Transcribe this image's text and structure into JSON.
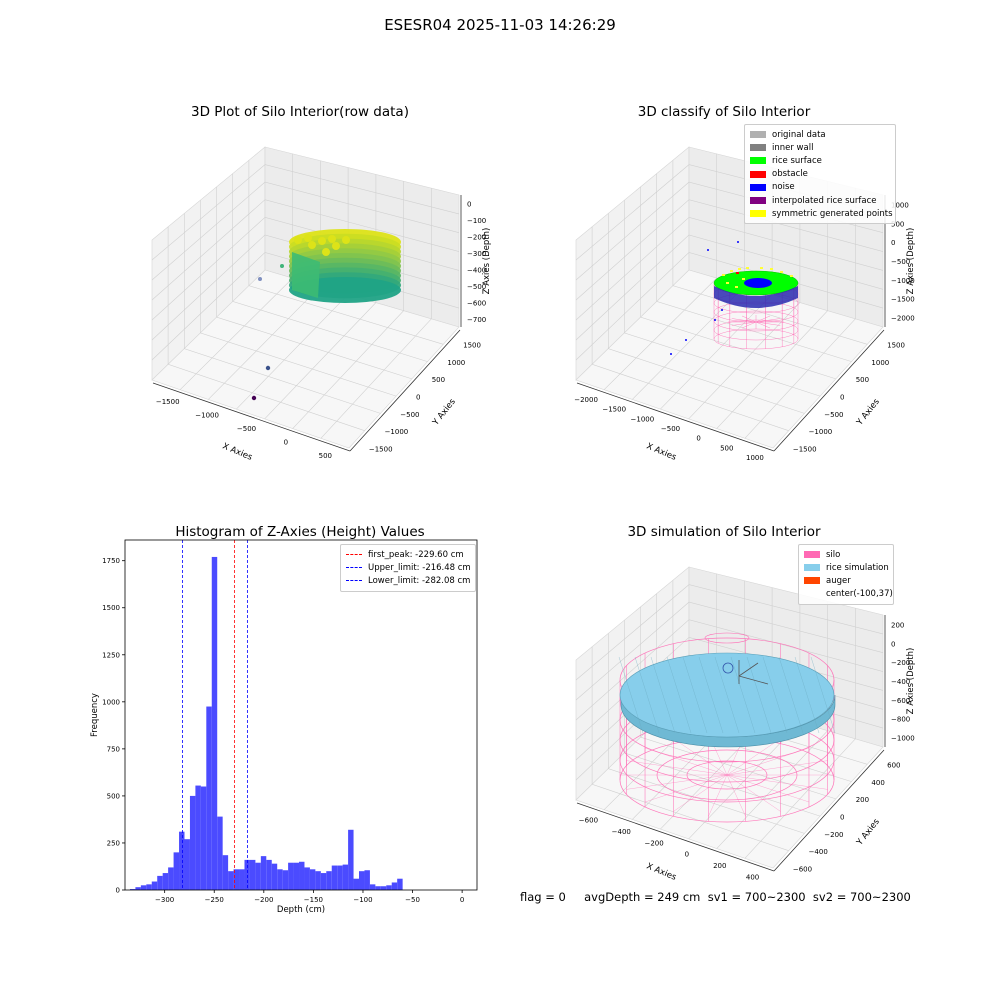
{
  "suptitle": "ESESR04 2025-11-03 14:26:29",
  "footer": "flag = 0     avgDepth = 249 cm  sv1 = 700~2300  sv2 = 700~2300",
  "colors": {
    "hist_bar": "#4b4bff",
    "first_peak": "#ff0000",
    "limit": "#0000ff",
    "silo": "#ff69b4",
    "rice": "#87ceeb",
    "auger": "#ff4500",
    "noise": "#0000ff",
    "rice_surface": "#00ff00",
    "viridis_low": "#20a386",
    "viridis_high": "#dde318"
  },
  "chart_data": [
    {
      "type": "scatter",
      "projection": "3d",
      "title": "3D Plot of Silo Interior(row data)",
      "xlabel": "X Axies",
      "ylabel": "Y Axies",
      "zlabel": "Z Axies (Depth)",
      "xticks": [
        "−1500",
        "−1000",
        "−500",
        "0",
        "500"
      ],
      "yticks": [
        "1500",
        "1000",
        "500",
        "0",
        "−500",
        "−1000",
        "−1500"
      ],
      "zticks": [
        "0",
        "−100",
        "−200",
        "−300",
        "−400",
        "−500",
        "−600",
        "−700"
      ],
      "colormap": "viridis"
    },
    {
      "type": "scatter",
      "projection": "3d",
      "title": "3D classify of Silo Interior",
      "xlabel": "X Axies",
      "ylabel": "Y Axies",
      "zlabel": "Z Axies (Depth)",
      "xticks": [
        "−2000",
        "−1500",
        "−1000",
        "−500",
        "0",
        "500",
        "1000"
      ],
      "yticks": [
        "1500",
        "1000",
        "500",
        "0",
        "−500",
        "−1000",
        "−1500"
      ],
      "zticks": [
        "1000",
        "500",
        "0",
        "−500",
        "−1000",
        "−1500",
        "−2000"
      ],
      "legend_location": "top-right",
      "legend": [
        {
          "label": "original data",
          "color": "#b0b0b0"
        },
        {
          "label": "inner wall",
          "color": "#808080"
        },
        {
          "label": "rice surface",
          "color": "#00ff00"
        },
        {
          "label": "obstacle",
          "color": "#ff0000"
        },
        {
          "label": "noise",
          "color": "#0000ff"
        },
        {
          "label": "interpolated rice surface",
          "color": "#800080"
        },
        {
          "label": "symmetric generated points",
          "color": "#ffff00"
        }
      ]
    },
    {
      "type": "bar",
      "title": "Histogram of Z-Axies (Height) Values",
      "xlabel": "Depth (cm)",
      "ylabel": "Frequency",
      "xlim": [
        -340,
        15
      ],
      "ylim": [
        0,
        1860
      ],
      "xticks": [
        -300,
        -250,
        -200,
        -150,
        -100,
        -50,
        0
      ],
      "yticks": [
        0,
        250,
        500,
        750,
        1000,
        1250,
        1500,
        1750
      ],
      "bin_width": 5.5,
      "bin_start": -335,
      "values": [
        5,
        15,
        25,
        30,
        45,
        75,
        90,
        120,
        200,
        310,
        270,
        500,
        555,
        550,
        975,
        1770,
        390,
        185,
        100,
        110,
        110,
        160,
        160,
        145,
        180,
        160,
        140,
        110,
        105,
        145,
        145,
        150,
        120,
        110,
        100,
        90,
        100,
        130,
        130,
        135,
        320,
        60,
        100,
        105,
        30,
        20,
        20,
        25,
        40,
        60
      ],
      "vlines": [
        {
          "x": -229.6,
          "label": "first_peak: -229.60 cm",
          "color": "#ff0000"
        },
        {
          "x": -216.48,
          "label": "Upper_limit: -216.48 cm",
          "color": "#0000ff"
        },
        {
          "x": -282.08,
          "label": "Lower_limit: -282.08 cm",
          "color": "#0000ff"
        }
      ],
      "legend_location": "top-right"
    },
    {
      "type": "scatter",
      "projection": "3d",
      "title": "3D simulation of Silo Interior",
      "xlabel": "X Axies",
      "ylabel": "Y Axies",
      "zlabel": "Z Axies (Depth)",
      "xticks": [
        "−600",
        "−400",
        "−200",
        "0",
        "200",
        "400"
      ],
      "yticks": [
        "600",
        "400",
        "200",
        "0",
        "−200",
        "−400",
        "−600"
      ],
      "zticks": [
        "200",
        "0",
        "−200",
        "−400",
        "−600",
        "−800",
        "−1000"
      ],
      "legend_location": "top-right",
      "legend": [
        {
          "label": "silo",
          "color": "#ff69b4"
        },
        {
          "label": "rice simulation",
          "color": "#87ceeb"
        },
        {
          "label": "auger",
          "color": "#ff4500"
        },
        {
          "label": "center(-100,37)",
          "color": ""
        }
      ]
    }
  ]
}
